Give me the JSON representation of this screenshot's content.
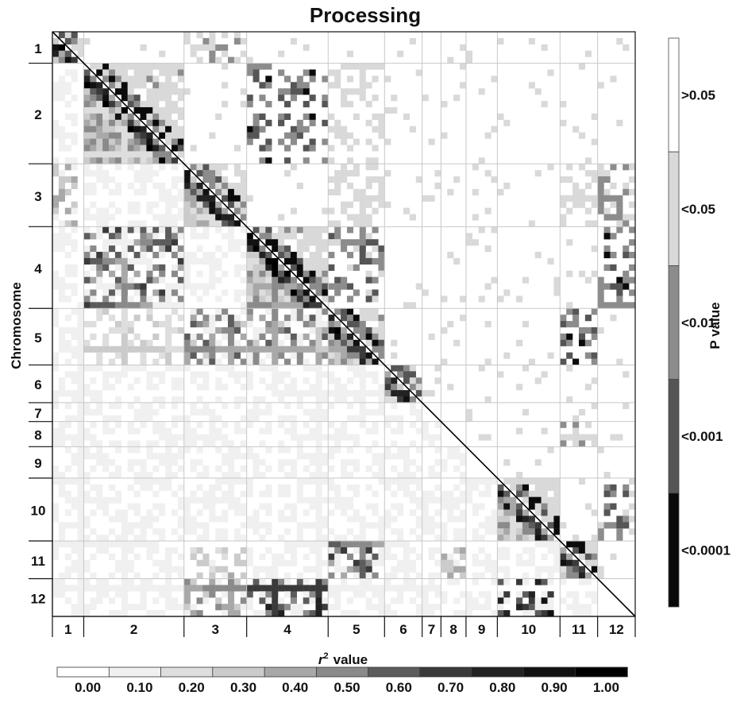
{
  "chart_data": {
    "type": "heatmap",
    "title": "Processing",
    "ylabel": "Chromosome",
    "colorbar_label": "P value",
    "xlabel_r": "r",
    "xlabel_sup": "2",
    "xlabel_suffix": "value",
    "chromosomes": [
      "1",
      "2",
      "3",
      "4",
      "5",
      "6",
      "7",
      "8",
      "9",
      "10",
      "11",
      "12"
    ],
    "marker_counts": [
      5,
      16,
      10,
      13,
      9,
      6,
      3,
      4,
      5,
      10,
      6,
      6
    ],
    "r2_scale": {
      "ticks": [
        "0.00",
        "0.10",
        "0.20",
        "0.30",
        "0.40",
        "0.50",
        "0.60",
        "0.70",
        "0.80",
        "0.90",
        "1.00"
      ],
      "colors": [
        "#ffffff",
        "#f0f0f0",
        "#dedede",
        "#cbcbcb",
        "#a8a8a8",
        "#8a8a8a",
        "#5c5c5c",
        "#3a3a3a",
        "#222222",
        "#111111",
        "#000000"
      ]
    },
    "p_scale": {
      "labels": [
        ">0.05",
        "<0.05",
        "<0.01",
        "<0.001",
        "<0.0001"
      ],
      "colors": [
        "#ffffff",
        "#d9d9d9",
        "#8c8c8c",
        "#555555",
        "#0a0a0a"
      ]
    },
    "lower_triangle": "r2",
    "upper_triangle": "p_value",
    "diagonal_line": true,
    "grid": "chromosome boundaries",
    "blocks": [
      {
        "rows": "1",
        "cols": "1",
        "level": 0.9
      },
      {
        "rows": "2",
        "cols": "2",
        "level": 0.95
      },
      {
        "rows": "3",
        "cols": "3",
        "level": 0.85
      },
      {
        "rows": "4",
        "cols": "4",
        "level": 0.95
      },
      {
        "rows": "5",
        "cols": "5",
        "level": 0.95
      },
      {
        "rows": "6",
        "cols": "6",
        "level": 0.8
      },
      {
        "rows": "10",
        "cols": "10",
        "level": 0.9
      },
      {
        "rows": "11",
        "cols": "11",
        "level": 0.9
      },
      {
        "rows": "1",
        "cols": "3",
        "level": 0.6
      },
      {
        "rows": "2",
        "cols": "4",
        "level": 0.9
      },
      {
        "rows": "2",
        "cols": "5",
        "level": 0.4
      },
      {
        "rows": "3",
        "cols": "5",
        "level": 0.5
      },
      {
        "rows": "3",
        "cols": "11",
        "level": 0.5
      },
      {
        "rows": "3",
        "cols": "12",
        "level": 0.7
      },
      {
        "rows": "4",
        "cols": "5",
        "level": 0.8
      },
      {
        "rows": "4",
        "cols": "12",
        "level": 0.9
      },
      {
        "rows": "5",
        "cols": "11",
        "level": 0.9
      },
      {
        "rows": "8",
        "cols": "11",
        "level": 0.6
      },
      {
        "rows": "10",
        "cols": "12",
        "level": 0.8
      },
      {
        "rows": "4",
        "cols": "2",
        "level": 0.7
      },
      {
        "rows": "5",
        "cols": "3",
        "level": 0.6
      },
      {
        "rows": "12",
        "cols": "4",
        "level": 0.8
      },
      {
        "rows": "12",
        "cols": "10",
        "level": 0.9
      },
      {
        "rows": "11",
        "cols": "5",
        "level": 0.7
      }
    ]
  }
}
